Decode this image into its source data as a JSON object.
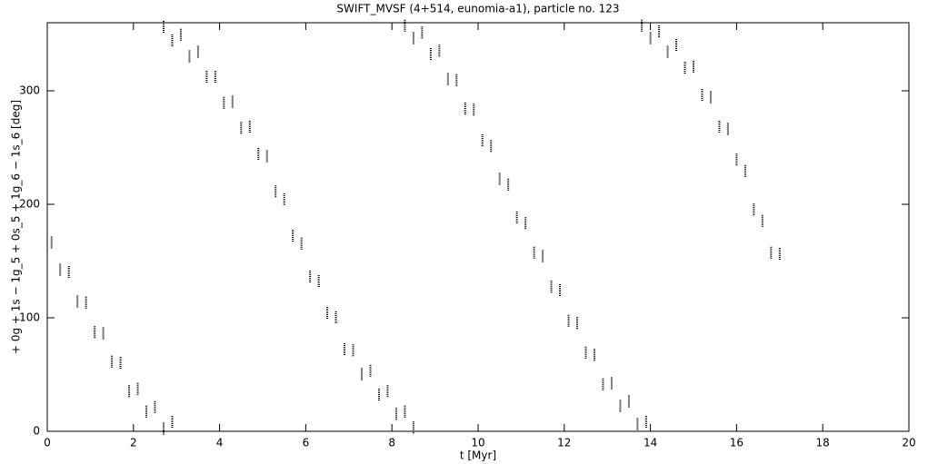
{
  "chart_data": {
    "type": "scatter",
    "title": "SWIFT_MVSF (4+514, eunomia-a1), particle no. 123",
    "x_label": "t [Myr]",
    "y_label": "+ 0g + 1s − 1g_5 + 0s_5 + 1g_6 − 1s_6 [deg]",
    "xlim": [
      0,
      20
    ],
    "xticks": [
      0,
      2,
      4,
      6,
      8,
      10,
      12,
      14,
      16,
      18,
      20
    ],
    "ylim": [
      0,
      360
    ],
    "yticks": [
      0,
      100,
      200,
      300
    ],
    "series": [
      {
        "color": "#000000",
        "x": [
          0.1,
          0.3,
          0.5,
          0.7,
          0.9,
          1.1,
          1.3,
          1.5,
          1.7,
          1.9,
          2.1,
          2.3,
          2.5,
          2.7,
          2.9,
          2.7,
          2.9,
          3.1,
          3.3,
          3.5,
          3.7,
          3.9,
          4.1,
          4.3,
          4.5,
          4.7,
          4.9,
          5.1,
          5.3,
          5.5,
          5.7,
          5.9,
          6.1,
          6.3,
          6.5,
          6.7,
          6.9,
          7.1,
          7.3,
          7.5,
          7.7,
          7.9,
          8.1,
          8.3,
          8.5,
          8.3,
          8.5,
          8.7,
          8.9,
          9.1,
          9.3,
          9.5,
          9.7,
          9.9,
          10.1,
          10.3,
          10.5,
          10.7,
          10.9,
          11.1,
          11.3,
          11.5,
          11.7,
          11.9,
          12.1,
          12.3,
          12.5,
          12.7,
          12.9,
          13.1,
          13.3,
          13.5,
          13.7,
          13.9,
          13.8,
          14.0,
          14.2,
          14.4,
          14.6,
          14.8,
          15.0,
          15.2,
          15.4,
          15.6,
          15.8,
          16.0,
          16.2,
          16.4,
          16.6,
          16.8,
          17.0
        ],
        "values": [
          166,
          142,
          140,
          114,
          113,
          87,
          86,
          61,
          60,
          35,
          37,
          17,
          21,
          2,
          8,
          356,
          344,
          349,
          330,
          334,
          312,
          312,
          289,
          290,
          267,
          268,
          244,
          242,
          211,
          204,
          172,
          165,
          136,
          132,
          104,
          100,
          72,
          71,
          50,
          53,
          32,
          35,
          15,
          17,
          3,
          357,
          346,
          351,
          332,
          335,
          310,
          309,
          284,
          283,
          256,
          251,
          222,
          217,
          188,
          183,
          157,
          154,
          127,
          124,
          97,
          95,
          69,
          67,
          41,
          42,
          22,
          26,
          6,
          8,
          357,
          346,
          352,
          334,
          340,
          320,
          321,
          296,
          294,
          268,
          266,
          239,
          229,
          195,
          185,
          157,
          156
        ]
      }
    ]
  }
}
